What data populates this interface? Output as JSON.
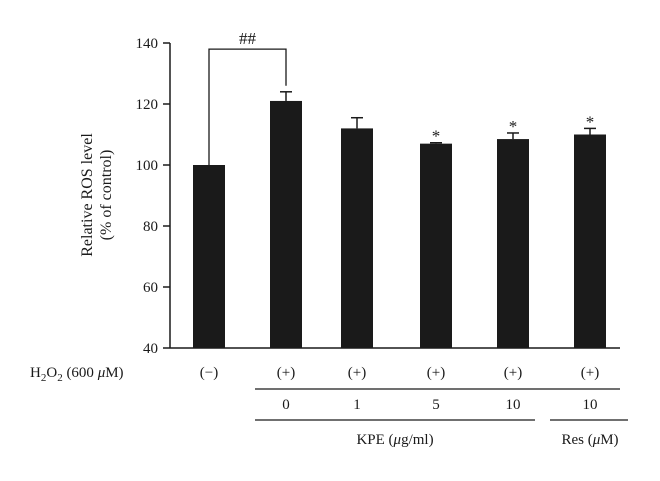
{
  "chart_data": {
    "type": "bar",
    "title": "",
    "ylabel_line1": "Relative ROS level",
    "ylabel_line2": "(% of control)",
    "ylim": [
      40,
      140
    ],
    "yticks": [
      40,
      60,
      80,
      100,
      120,
      140
    ],
    "grid": false,
    "legend": "none",
    "bar_color": "#1a1a1a",
    "values": [
      100,
      121,
      112,
      107,
      108.5,
      110
    ],
    "errors": [
      0,
      3,
      3.5,
      0.3,
      2,
      2
    ],
    "markers": [
      "",
      "",
      "",
      "*",
      "*",
      "*"
    ],
    "comparison": {
      "from": 0,
      "to": 1,
      "label": "##"
    },
    "h2o2_label": "H2O2 (600 μM)",
    "h2o2_row": [
      "(−)",
      "(+)",
      "(+)",
      "(+)",
      "(+)",
      "(+)"
    ],
    "dose_row": [
      "",
      "0",
      "1",
      "5",
      "10",
      "10"
    ],
    "kpe_label": "KPE (μg/ml)",
    "res_label": "Res (μM)"
  }
}
